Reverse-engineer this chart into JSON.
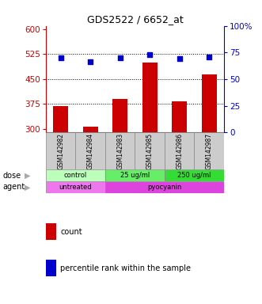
{
  "title": "GDS2522 / 6652_at",
  "samples": [
    "GSM142982",
    "GSM142984",
    "GSM142983",
    "GSM142985",
    "GSM142986",
    "GSM142987"
  ],
  "bar_values": [
    370,
    308,
    390,
    500,
    383,
    463
  ],
  "percentile_values": [
    70,
    66,
    70,
    73,
    69,
    71
  ],
  "ylim_left": [
    290,
    610
  ],
  "ylim_right": [
    0,
    100
  ],
  "yticks_left": [
    300,
    375,
    450,
    525,
    600
  ],
  "yticks_right": [
    0,
    25,
    50,
    75,
    100
  ],
  "bar_color": "#cc0000",
  "dot_color": "#0000cc",
  "dose_labels": [
    "control",
    "25 ug/ml",
    "250 ug/ml"
  ],
  "dose_groups": [
    2,
    2,
    2
  ],
  "dose_colors": [
    "#bbffbb",
    "#66ee66",
    "#33dd33"
  ],
  "agent_labels": [
    "untreated",
    "pyocyanin"
  ],
  "agent_groups": [
    2,
    4
  ],
  "agent_colors": [
    "#ee77ee",
    "#dd44dd"
  ],
  "legend_bar_label": "count",
  "legend_dot_label": "percentile rank within the sample",
  "left_axis_color": "#cc0000",
  "right_axis_color": "#0000cc",
  "background_color": "#ffffff",
  "sample_bg_color": "#cccccc"
}
